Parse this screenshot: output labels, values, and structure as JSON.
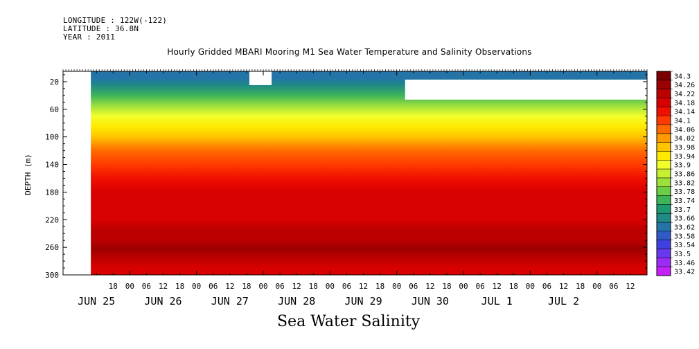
{
  "header": {
    "longitude": "LONGITUDE : 122W(-122)",
    "latitude": "LATITUDE : 36.8N",
    "year": "YEAR : 2011"
  },
  "chart_data": {
    "type": "heatmap",
    "title": "Hourly Gridded MBARI Mooring M1 Sea Water Temperature and Salinity Observations",
    "xlabel": "Sea Water Salinity",
    "ylabel": "DEPTH (m)",
    "y_ticks": [
      20,
      60,
      100,
      140,
      180,
      220,
      260,
      300
    ],
    "ylim": [
      300,
      5
    ],
    "x_hour_labels": [
      "18",
      "00",
      "06",
      "12",
      "18",
      "00",
      "06",
      "12",
      "18",
      "00",
      "06",
      "12",
      "18",
      "00",
      "06",
      "12",
      "18",
      "00",
      "06",
      "12",
      "18",
      "00",
      "06",
      "12",
      "18",
      "00",
      "06",
      "12",
      "18",
      "00",
      "06",
      "12"
    ],
    "x_hour_label_times": [
      18,
      24,
      30,
      36,
      42,
      48,
      54,
      60,
      66,
      72,
      78,
      84,
      90,
      96,
      102,
      108,
      114,
      120,
      126,
      132,
      138,
      144,
      150,
      156,
      162,
      168,
      174,
      180,
      186,
      192,
      198,
      204
    ],
    "x_day_labels": [
      "JUN 25",
      "JUN 26",
      "JUN 27",
      "JUN 28",
      "JUN 29",
      "JUN 30",
      "JUL  1",
      "JUL  2"
    ],
    "x_day_label_times": [
      12,
      36,
      60,
      84,
      108,
      132,
      156,
      180
    ],
    "xlim": [
      0,
      210
    ],
    "colorbar_levels": [
      34.3,
      34.26,
      34.22,
      34.18,
      34.14,
      34.1,
      34.06,
      34.02,
      33.98,
      33.94,
      33.9,
      33.86,
      33.82,
      33.78,
      33.74,
      33.7,
      33.66,
      33.62,
      33.58,
      33.54,
      33.5,
      33.46,
      33.42
    ],
    "colorbar_colors": [
      "#7a0000",
      "#9c0000",
      "#bb0000",
      "#d80000",
      "#f01000",
      "#ff3a00",
      "#ff6a00",
      "#ff9a00",
      "#ffc400",
      "#ffea00",
      "#f2ff2a",
      "#c8f032",
      "#9ce03c",
      "#6cce46",
      "#3eb45a",
      "#1e9a70",
      "#1e8a86",
      "#2474a8",
      "#305ac8",
      "#4040e0",
      "#6a38ee",
      "#9a2cf4",
      "#c420f8"
    ],
    "depth_profile": [
      {
        "depth": 5,
        "value": 33.64
      },
      {
        "depth": 15,
        "value": 33.63
      },
      {
        "depth": 25,
        "value": 33.66
      },
      {
        "depth": 40,
        "value": 33.74
      },
      {
        "depth": 55,
        "value": 33.82
      },
      {
        "depth": 70,
        "value": 33.9
      },
      {
        "depth": 85,
        "value": 33.97
      },
      {
        "depth": 100,
        "value": 34.0
      },
      {
        "depth": 120,
        "value": 34.06
      },
      {
        "depth": 140,
        "value": 34.11
      },
      {
        "depth": 160,
        "value": 34.15
      },
      {
        "depth": 180,
        "value": 34.18
      },
      {
        "depth": 200,
        "value": 34.18
      },
      {
        "depth": 220,
        "value": 34.19
      },
      {
        "depth": 235,
        "value": 34.22
      },
      {
        "depth": 250,
        "value": 34.25
      },
      {
        "depth": 262,
        "value": 34.27
      },
      {
        "depth": 275,
        "value": 34.24
      },
      {
        "depth": 290,
        "value": 34.2
      },
      {
        "depth": 300,
        "value": 34.18
      }
    ],
    "missing_regions": [
      {
        "t_start": 0,
        "t_end": 10,
        "d_start": 5,
        "d_end": 300
      },
      {
        "t_start": 67,
        "t_end": 75,
        "d_start": 5,
        "d_end": 25
      },
      {
        "t_start": 123,
        "t_end": 210,
        "d_start": 17,
        "d_end": 46
      }
    ]
  }
}
